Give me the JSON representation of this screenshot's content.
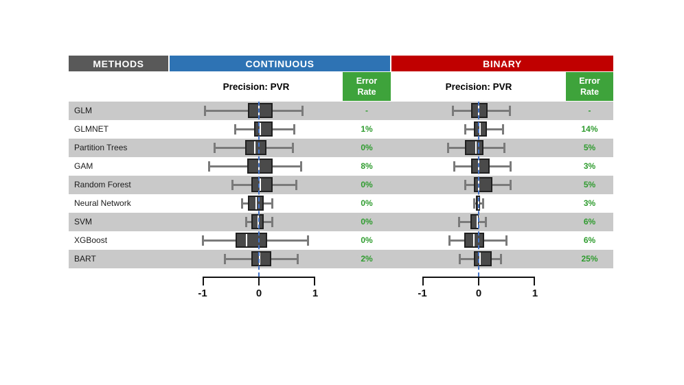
{
  "header": {
    "methods": "METHODS",
    "continuous": "CONTINUOUS",
    "binary": "BINARY"
  },
  "subheader": {
    "precision_continuous": "Precision: PVR",
    "precision_binary": "Precision: PVR",
    "error_rate_line1": "Error",
    "error_rate_line2": "Rate"
  },
  "axis": {
    "ticks": [
      "-1",
      "0",
      "1"
    ],
    "min": -1,
    "max": 1
  },
  "colors": {
    "methods_header": "#595959",
    "continuous_header": "#2E74B5",
    "binary_header": "#C00000",
    "error_header_bg": "#3FA33C",
    "error_value_text": "#2E9B2E",
    "row_stripe": "#C9C9C9",
    "box_fill": "#4A4A4A",
    "box_border": "#1F1F1F",
    "whisker": "#7A7A7A",
    "zero_line": "#4472C4"
  },
  "chart_data": {
    "type": "boxplot",
    "x_range": [
      -1,
      1
    ],
    "zero_reference_line": true,
    "methods": [
      "GLM",
      "GLMNET",
      "Partition Trees",
      "GAM",
      "Random Forest",
      "Neural Network",
      "SVM",
      "XGBoost",
      "BART"
    ],
    "panels": [
      {
        "label": "CONTINUOUS",
        "precision_metric": "Precision: PVR",
        "error_rate_header": "Error Rate",
        "boxes": [
          {
            "low": -0.96,
            "q1": -0.2,
            "median": 0.0,
            "q3": 0.24,
            "high": 0.78,
            "error": "-"
          },
          {
            "low": -0.43,
            "q1": -0.09,
            "median": 0.02,
            "q3": 0.25,
            "high": 0.63,
            "error": "1%"
          },
          {
            "low": -0.79,
            "q1": -0.24,
            "median": -0.07,
            "q3": 0.14,
            "high": 0.61,
            "error": "0%"
          },
          {
            "low": -0.89,
            "q1": -0.21,
            "median": 0.0,
            "q3": 0.24,
            "high": 0.76,
            "error": "8%"
          },
          {
            "low": -0.48,
            "q1": -0.13,
            "median": 0.03,
            "q3": 0.25,
            "high": 0.67,
            "error": "0%"
          },
          {
            "low": -0.31,
            "q1": -0.2,
            "median": -0.05,
            "q3": 0.08,
            "high": 0.24,
            "error": "0%"
          },
          {
            "low": -0.23,
            "q1": -0.13,
            "median": -0.01,
            "q3": 0.08,
            "high": 0.24,
            "error": "0%"
          },
          {
            "low": -1.0,
            "q1": -0.41,
            "median": -0.22,
            "q3": 0.15,
            "high": 0.88,
            "error": "0%"
          },
          {
            "low": -0.61,
            "q1": -0.13,
            "median": 0.01,
            "q3": 0.22,
            "high": 0.7,
            "error": "2%"
          }
        ]
      },
      {
        "label": "BINARY",
        "precision_metric": "Precision: PVR",
        "error_rate_header": "Error Rate",
        "boxes": [
          {
            "low": -0.46,
            "q1": -0.13,
            "median": 0.0,
            "q3": 0.16,
            "high": 0.56,
            "error": "-"
          },
          {
            "low": -0.24,
            "q1": -0.08,
            "median": 0.02,
            "q3": 0.15,
            "high": 0.44,
            "error": "14%"
          },
          {
            "low": -0.55,
            "q1": -0.24,
            "median": -0.05,
            "q3": 0.08,
            "high": 0.46,
            "error": "5%"
          },
          {
            "low": -0.44,
            "q1": -0.13,
            "median": 0.0,
            "q3": 0.19,
            "high": 0.57,
            "error": "3%"
          },
          {
            "low": -0.24,
            "q1": -0.09,
            "median": 0.0,
            "q3": 0.24,
            "high": 0.57,
            "error": "5%"
          },
          {
            "low": -0.09,
            "q1": -0.05,
            "median": 0.0,
            "q3": 0.03,
            "high": 0.08,
            "error": "3%"
          },
          {
            "low": -0.35,
            "q1": -0.15,
            "median": -0.02,
            "q3": 0.0,
            "high": 0.13,
            "error": "6%"
          },
          {
            "low": -0.52,
            "q1": -0.26,
            "median": -0.09,
            "q3": 0.1,
            "high": 0.5,
            "error": "6%"
          },
          {
            "low": -0.34,
            "q1": -0.08,
            "median": 0.02,
            "q3": 0.23,
            "high": 0.4,
            "error": "25%"
          }
        ]
      }
    ]
  }
}
